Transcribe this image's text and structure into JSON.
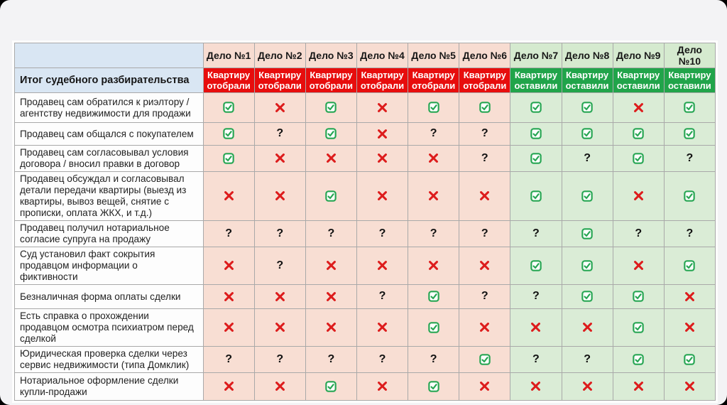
{
  "colors": {
    "page_bg": "#f3f3f5",
    "header_blue": "#d9e6f3",
    "case_header_taken_bg": "#f7dcd1",
    "case_header_kept_bg": "#d5eacf",
    "outcome_taken_bg": "#e70d0d",
    "outcome_kept_bg": "#21a44a",
    "cell_taken_bg": "#f8ded3",
    "cell_kept_bg": "#daecd6",
    "check_green": "#27a653",
    "cross_red": "#dd1c1c"
  },
  "chart_data": {
    "type": "table",
    "corner_title": "Итог судебного разбирательства",
    "cases": [
      {
        "name": "Дело №1",
        "outcome": "Квартиру отобрали",
        "result": "taken"
      },
      {
        "name": "Дело №2",
        "outcome": "Квартиру отобрали",
        "result": "taken"
      },
      {
        "name": "Дело №3",
        "outcome": "Квартиру отобрали",
        "result": "taken"
      },
      {
        "name": "Дело №4",
        "outcome": "Квартиру отобрали",
        "result": "taken"
      },
      {
        "name": "Дело №5",
        "outcome": "Квартиру отобрали",
        "result": "taken"
      },
      {
        "name": "Дело №6",
        "outcome": "Квартиру отобрали",
        "result": "taken"
      },
      {
        "name": "Дело №7",
        "outcome": "Квартиру оставили",
        "result": "kept"
      },
      {
        "name": "Дело №8",
        "outcome": "Квартиру оставили",
        "result": "kept"
      },
      {
        "name": "Дело №9",
        "outcome": "Квартиру оставили",
        "result": "kept"
      },
      {
        "name": "Дело №10",
        "outcome": "Квартиру оставили",
        "result": "kept"
      }
    ],
    "criteria": [
      {
        "label": "Продавец сам обратился к риэлтору / агентству недвижимости для продажи",
        "values": [
          "check",
          "cross",
          "check",
          "cross",
          "check",
          "check",
          "check",
          "check",
          "cross",
          "check"
        ]
      },
      {
        "label": "Продавец сам общался с покупателем",
        "values": [
          "check",
          "question",
          "check",
          "cross",
          "question",
          "question",
          "check",
          "check",
          "check",
          "check"
        ]
      },
      {
        "label": "Продавец сам согласовывал условия договора / вносил правки в договор",
        "values": [
          "check",
          "cross",
          "cross",
          "cross",
          "cross",
          "question",
          "check",
          "question",
          "check",
          "question"
        ]
      },
      {
        "label": "Продавец обсуждал и согласовывал детали передачи квартиры (выезд из квартиры, вывоз вещей, снятие с прописки, оплата ЖКХ, и т.д.)",
        "values": [
          "cross",
          "cross",
          "check",
          "cross",
          "cross",
          "cross",
          "check",
          "check",
          "cross",
          "check"
        ]
      },
      {
        "label": "Продавец получил нотариальное согласие супруга на продажу",
        "values": [
          "question",
          "question",
          "question",
          "question",
          "question",
          "question",
          "question",
          "check",
          "question",
          "question"
        ]
      },
      {
        "label": "Суд установил факт сокрытия продавцом информации о фиктивности",
        "values": [
          "cross",
          "question",
          "cross",
          "cross",
          "cross",
          "cross",
          "check",
          "check",
          "cross",
          "check"
        ]
      },
      {
        "label": "Безналичная форма оплаты сделки",
        "values": [
          "cross",
          "cross",
          "cross",
          "question",
          "check",
          "question",
          "question",
          "check",
          "check",
          "cross"
        ]
      },
      {
        "label": "Есть справка о прохождении продавцом осмотра психиатром перед сделкой",
        "values": [
          "cross",
          "cross",
          "cross",
          "cross",
          "check",
          "cross",
          "cross",
          "cross",
          "check",
          "cross"
        ]
      },
      {
        "label": "Юридическая проверка сделки через сервис недвижимости (типа Домклик)",
        "values": [
          "question",
          "question",
          "question",
          "question",
          "question",
          "check",
          "question",
          "question",
          "check",
          "check"
        ]
      },
      {
        "label": "Нотариальное оформление сделки купли-продажи",
        "values": [
          "cross",
          "cross",
          "check",
          "cross",
          "check",
          "cross",
          "cross",
          "cross",
          "cross",
          "cross"
        ]
      }
    ],
    "symbols": {
      "check": "checked-checkbox",
      "cross": "red-cross",
      "question": "question-mark"
    }
  }
}
